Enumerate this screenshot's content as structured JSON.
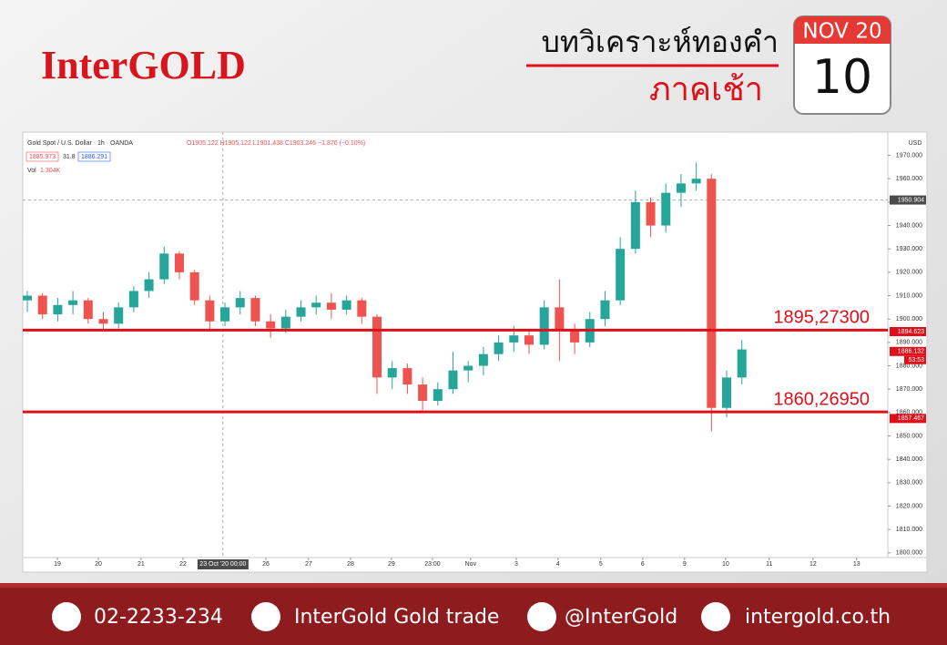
{
  "header": {
    "logo": "InterGOLD",
    "title": "บทวิเคราะห์ทองคำ",
    "subtitle": "ภาคเช้า",
    "calendar_month": "NOV 20",
    "calendar_day": "10"
  },
  "chart_data": {
    "type": "candlestick",
    "title": "Gold Spot / U.S. Dollar · 1h · OANDA",
    "ohlc_legend": "O1905.122 H1905.122 L1901.438 C1903.246 −1.876 (−0.10%)",
    "bid": "1885.973",
    "spread": "31.8",
    "ask": "1886.291",
    "volume_label": "Vol",
    "volume_value": "1.304K",
    "currency": "USD",
    "countdown": "53:53",
    "up_color": "#26a69a",
    "down_color": "#ef5350",
    "level_color": "#e0101a",
    "open": [
      1908,
      1910,
      1902,
      1906,
      1908,
      1900,
      1898,
      1905,
      1912,
      1917,
      1928,
      1920,
      1908,
      1899,
      1905,
      1909,
      1899,
      1896,
      1901,
      1905,
      1907,
      1904,
      1908,
      1901,
      1875,
      1879,
      1872,
      1865,
      1870,
      1878,
      1880,
      1885,
      1890,
      1893,
      1889,
      1905,
      1895,
      1890,
      1900,
      1908,
      1930,
      1950,
      1940,
      1954,
      1958,
      1960,
      1862,
      1875
    ],
    "high": [
      1912,
      1911,
      1909,
      1912,
      1909,
      1903,
      1907,
      1914,
      1920,
      1931,
      1929,
      1921,
      1910,
      1907,
      1912,
      1910,
      1902,
      1904,
      1908,
      1910,
      1911,
      1910,
      1909,
      1902,
      1882,
      1881,
      1875,
      1873,
      1886,
      1882,
      1888,
      1893,
      1897,
      1895,
      1908,
      1917,
      1898,
      1903,
      1912,
      1935,
      1955,
      1952,
      1958,
      1962,
      1967,
      1962,
      1878,
      1891
    ],
    "low": [
      1903,
      1900,
      1899,
      1902,
      1898,
      1895,
      1896,
      1903,
      1909,
      1915,
      1917,
      1906,
      1895,
      1897,
      1902,
      1897,
      1892,
      1894,
      1899,
      1902,
      1900,
      1902,
      1898,
      1868,
      1870,
      1868,
      1861,
      1863,
      1868,
      1873,
      1876,
      1882,
      1886,
      1885,
      1887,
      1882,
      1885,
      1888,
      1897,
      1906,
      1928,
      1935,
      1937,
      1948,
      1955,
      1852,
      1858,
      1872
    ],
    "close": [
      1910,
      1902,
      1906,
      1908,
      1900,
      1898,
      1905,
      1912,
      1917,
      1928,
      1920,
      1908,
      1899,
      1905,
      1909,
      1899,
      1896,
      1901,
      1905,
      1907,
      1904,
      1908,
      1901,
      1875,
      1879,
      1872,
      1865,
      1870,
      1878,
      1880,
      1885,
      1890,
      1893,
      1889,
      1905,
      1895,
      1890,
      1900,
      1908,
      1930,
      1950,
      1940,
      1954,
      1958,
      1960,
      1862,
      1875,
      1887
    ],
    "xlim": [
      -0.3,
      56.6
    ],
    "xticks": [
      {
        "value": 1.98,
        "label": "19"
      },
      {
        "value": 4.67,
        "label": "20"
      },
      {
        "value": 7.48,
        "label": "21"
      },
      {
        "value": 10.24,
        "label": "22"
      },
      {
        "value": 15.69,
        "label": "26"
      },
      {
        "value": 18.5,
        "label": "27"
      },
      {
        "value": 21.26,
        "label": "28"
      },
      {
        "value": 23.95,
        "label": "29"
      },
      {
        "value": 26.65,
        "label": "23:00"
      },
      {
        "value": 29.16,
        "label": "Nov"
      },
      {
        "value": 32.16,
        "label": "3"
      },
      {
        "value": 34.91,
        "label": "4"
      },
      {
        "value": 37.72,
        "label": "5"
      },
      {
        "value": 40.48,
        "label": "6"
      },
      {
        "value": 43.23,
        "label": "9"
      },
      {
        "value": 45.93,
        "label": "10"
      },
      {
        "value": 48.8,
        "label": "11"
      },
      {
        "value": 51.68,
        "label": "12"
      },
      {
        "value": 54.55,
        "label": "13"
      }
    ],
    "ylim": [
      1798,
      1978
    ],
    "yticks": [
      {
        "value": 1800,
        "label": "1800.000"
      },
      {
        "value": 1810,
        "label": "1810.000"
      },
      {
        "value": 1820,
        "label": "1820.000"
      },
      {
        "value": 1830,
        "label": "1830.000"
      },
      {
        "value": 1840,
        "label": "1840.000"
      },
      {
        "value": 1850,
        "label": "1850.000"
      },
      {
        "value": 1860,
        "label": "1860.000"
      },
      {
        "value": 1870,
        "label": "1870.000"
      },
      {
        "value": 1880,
        "label": "1880.000"
      },
      {
        "value": 1890,
        "label": "1890.000"
      },
      {
        "value": 1900,
        "label": "1900.000"
      },
      {
        "value": 1910,
        "label": "1910.000"
      },
      {
        "value": 1920,
        "label": "1920.000"
      },
      {
        "value": 1930,
        "label": "1930.000"
      },
      {
        "value": 1940,
        "label": "1940.000"
      },
      {
        "value": 1950,
        "label": "1950.000"
      },
      {
        "value": 1960,
        "label": "1960.000"
      },
      {
        "value": 1970,
        "label": "1970.000"
      }
    ],
    "crosshair": {
      "x": {
        "value": 12.87,
        "label": "23 Oct '20   00:00"
      },
      "y": 1950.904
    },
    "levels": [
      {
        "value": 1895.273,
        "label": "1895,27300"
      },
      {
        "value": 1860.2695,
        "label": "1860,26950"
      }
    ],
    "price_tags": [
      1894.623,
      1886.132,
      1857.467
    ]
  },
  "footer": {
    "phone": "02-2233-234",
    "facebook": "InterGold Gold trade",
    "line": "@InterGold",
    "website": "intergold.co.th"
  }
}
